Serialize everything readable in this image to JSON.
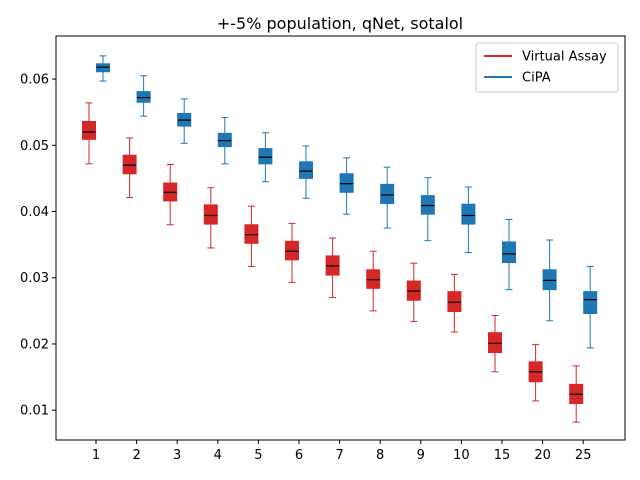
{
  "chart_data": {
    "type": "box",
    "title": "+-5% population, qNet, sotalol",
    "xlabel": "",
    "ylabel": "",
    "categories": [
      "1",
      "2",
      "3",
      "4",
      "5",
      "6",
      "7",
      "8",
      "9",
      "10",
      "15",
      "20",
      "25"
    ],
    "ylim": [
      0.0055,
      0.0665
    ],
    "yticks": [
      0.01,
      0.02,
      0.03,
      0.04,
      0.05,
      0.06
    ],
    "ytick_labels": [
      "0.01",
      "0.02",
      "0.03",
      "0.04",
      "0.05",
      "0.06"
    ],
    "grid": false,
    "legend_position": "top-right",
    "series": [
      {
        "name": "Virtual Assay",
        "color": "#d62728",
        "boxes": [
          {
            "whislo": 0.0472,
            "q1": 0.0509,
            "med": 0.052,
            "q3": 0.0536,
            "whishi": 0.0564
          },
          {
            "whislo": 0.0421,
            "q1": 0.0457,
            "med": 0.047,
            "q3": 0.0485,
            "whishi": 0.0511
          },
          {
            "whislo": 0.038,
            "q1": 0.0416,
            "med": 0.0429,
            "q3": 0.0443,
            "whishi": 0.0471
          },
          {
            "whislo": 0.0345,
            "q1": 0.0381,
            "med": 0.0394,
            "q3": 0.041,
            "whishi": 0.0436
          },
          {
            "whislo": 0.0317,
            "q1": 0.0352,
            "med": 0.0365,
            "q3": 0.038,
            "whishi": 0.0408
          },
          {
            "whislo": 0.0293,
            "q1": 0.0327,
            "med": 0.034,
            "q3": 0.0355,
            "whishi": 0.0382
          },
          {
            "whislo": 0.027,
            "q1": 0.0304,
            "med": 0.0318,
            "q3": 0.0333,
            "whishi": 0.036
          },
          {
            "whislo": 0.025,
            "q1": 0.0284,
            "med": 0.0297,
            "q3": 0.0312,
            "whishi": 0.034
          },
          {
            "whislo": 0.0234,
            "q1": 0.0266,
            "med": 0.028,
            "q3": 0.0295,
            "whishi": 0.0322
          },
          {
            "whislo": 0.0218,
            "q1": 0.0249,
            "med": 0.0263,
            "q3": 0.0279,
            "whishi": 0.0305
          },
          {
            "whislo": 0.0158,
            "q1": 0.0187,
            "med": 0.0201,
            "q3": 0.0217,
            "whishi": 0.0243
          },
          {
            "whislo": 0.0114,
            "q1": 0.0143,
            "med": 0.0158,
            "q3": 0.0173,
            "whishi": 0.0199
          },
          {
            "whislo": 0.0082,
            "q1": 0.011,
            "med": 0.0124,
            "q3": 0.0139,
            "whishi": 0.0167
          }
        ]
      },
      {
        "name": "CiPA",
        "color": "#1f77b4",
        "boxes": [
          {
            "whislo": 0.0597,
            "q1": 0.0611,
            "med": 0.0618,
            "q3": 0.0623,
            "whishi": 0.0635
          },
          {
            "whislo": 0.0544,
            "q1": 0.0565,
            "med": 0.0572,
            "q3": 0.0581,
            "whishi": 0.0605
          },
          {
            "whislo": 0.0503,
            "q1": 0.0529,
            "med": 0.0538,
            "q3": 0.0548,
            "whishi": 0.057
          },
          {
            "whislo": 0.0472,
            "q1": 0.0498,
            "med": 0.0507,
            "q3": 0.0518,
            "whishi": 0.0542
          },
          {
            "whislo": 0.0445,
            "q1": 0.0472,
            "med": 0.0482,
            "q3": 0.0495,
            "whishi": 0.0519
          },
          {
            "whislo": 0.042,
            "q1": 0.045,
            "med": 0.0461,
            "q3": 0.0475,
            "whishi": 0.0499
          },
          {
            "whislo": 0.0396,
            "q1": 0.0429,
            "med": 0.0442,
            "q3": 0.0457,
            "whishi": 0.0481
          },
          {
            "whislo": 0.0375,
            "q1": 0.0412,
            "med": 0.0425,
            "q3": 0.0441,
            "whishi": 0.0467
          },
          {
            "whislo": 0.0356,
            "q1": 0.0396,
            "med": 0.0409,
            "q3": 0.0424,
            "whishi": 0.0451
          },
          {
            "whislo": 0.0338,
            "q1": 0.0381,
            "med": 0.0394,
            "q3": 0.0411,
            "whishi": 0.0437
          },
          {
            "whislo": 0.0282,
            "q1": 0.0323,
            "med": 0.0336,
            "q3": 0.0354,
            "whishi": 0.0388
          },
          {
            "whislo": 0.0235,
            "q1": 0.0282,
            "med": 0.0296,
            "q3": 0.0312,
            "whishi": 0.0357
          },
          {
            "whislo": 0.0194,
            "q1": 0.0246,
            "med": 0.0267,
            "q3": 0.0279,
            "whishi": 0.0317
          }
        ]
      }
    ]
  }
}
